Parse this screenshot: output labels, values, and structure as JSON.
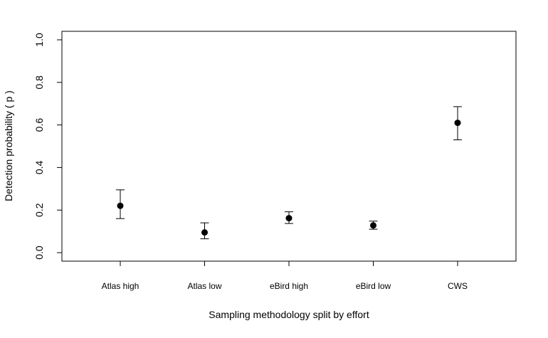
{
  "chart_data": {
    "type": "scatter",
    "xlabel": "Sampling methodology split by effort",
    "ylabel": "Detection probability ( p )",
    "categories": [
      "Atlas high",
      "Atlas low",
      "eBird high",
      "eBird low",
      "CWS"
    ],
    "values": [
      0.22,
      0.095,
      0.162,
      0.128,
      0.61
    ],
    "lower": [
      0.16,
      0.065,
      0.137,
      0.11,
      0.53
    ],
    "upper": [
      0.295,
      0.14,
      0.192,
      0.148,
      0.686
    ],
    "ylim": [
      -0.04,
      1.04
    ],
    "yticks": [
      "0.0",
      "0.2",
      "0.4",
      "0.6",
      "0.8",
      "1.0"
    ],
    "grid": false,
    "colors": {
      "points": "#000000",
      "axes": "#000000",
      "background": "#ffffff"
    }
  }
}
